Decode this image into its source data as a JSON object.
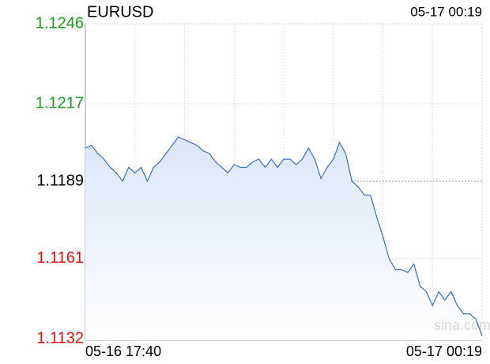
{
  "chart_data": {
    "type": "line",
    "title": "EURUSD",
    "timestamp": "05-17 00:19",
    "watermark": "sina.com",
    "categories": [
      "05-16 17:40",
      null,
      null,
      null,
      null,
      null,
      null,
      null,
      null,
      null,
      null,
      null,
      null,
      null,
      null,
      null,
      null,
      null,
      null,
      null,
      null,
      null,
      null,
      null,
      null,
      null,
      null,
      null,
      null,
      null,
      null,
      null,
      null,
      null,
      null,
      null,
      null,
      null,
      null,
      null,
      null,
      null,
      null,
      null,
      null,
      null,
      null,
      null,
      null,
      null,
      null,
      null,
      null,
      null,
      null,
      null,
      null,
      null,
      null,
      null,
      null,
      null,
      null,
      null,
      "05-17 00:19"
    ],
    "values": [
      1.1201,
      1.1202,
      1.1199,
      1.1197,
      1.1194,
      1.1192,
      1.1189,
      1.1194,
      1.1192,
      1.1194,
      1.1189,
      1.1194,
      1.1196,
      1.1199,
      1.1202,
      1.1205,
      1.1204,
      1.1203,
      1.1202,
      1.12,
      1.1199,
      1.1196,
      1.1194,
      1.1192,
      1.1195,
      1.1194,
      1.1194,
      1.1196,
      1.1197,
      1.1194,
      1.1197,
      1.1194,
      1.1197,
      1.1197,
      1.1195,
      1.1197,
      1.1201,
      1.1197,
      1.119,
      1.1194,
      1.1197,
      1.1203,
      1.1199,
      1.1189,
      1.1187,
      1.1184,
      1.1184,
      1.1176,
      1.1169,
      1.1161,
      1.1157,
      1.1157,
      1.1156,
      1.1159,
      1.1151,
      1.1149,
      1.1144,
      1.1149,
      1.1146,
      1.1149,
      1.1144,
      1.1141,
      1.1141,
      1.1139,
      1.1133
    ],
    "color": "#3a6fc4",
    "reference": 1.1189,
    "up_color": "#1a9a1a",
    "down_color": "#e01010",
    "flat_color": "#000000",
    "ylim": [
      1.1132,
      1.1246
    ],
    "yticks": [
      1.1246,
      1.1217,
      1.1189,
      1.1161,
      1.1132
    ],
    "grid": true
  }
}
